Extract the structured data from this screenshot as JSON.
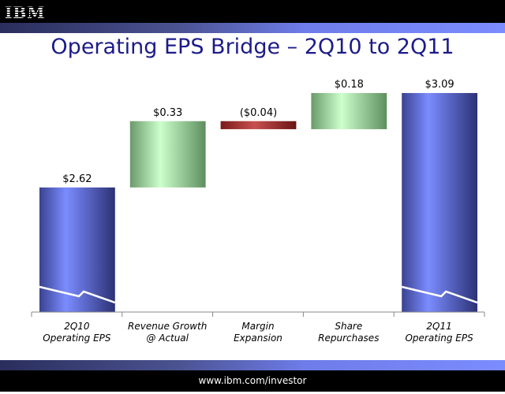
{
  "header": {
    "logo": "IBM"
  },
  "footer": {
    "url": "www.ibm.com/investor"
  },
  "colors": {
    "total": "#6f7ff0",
    "increase": "#c8f5c8",
    "decrease": "#a02828",
    "title": "#1c1c8a"
  },
  "chart_data": {
    "type": "waterfall",
    "title": "Operating EPS Bridge – 2Q10 to 2Q11",
    "categories": [
      [
        "2Q10",
        "Operating EPS"
      ],
      [
        "Revenue Growth",
        "@ Actual"
      ],
      [
        "Margin",
        "Expansion"
      ],
      [
        "Share",
        "Repurchases"
      ],
      [
        "2Q11",
        "Operating EPS"
      ]
    ],
    "values": [
      2.62,
      0.33,
      -0.04,
      0.18,
      3.09
    ],
    "kinds": [
      "total",
      "increase",
      "decrease",
      "increase",
      "total"
    ],
    "data_labels": [
      "$2.62",
      "$0.33",
      "($0.04)",
      "$0.18",
      "$3.09"
    ],
    "ylim": [
      2.0,
      3.2
    ],
    "axis_break": true,
    "xlabel": "",
    "ylabel": ""
  }
}
